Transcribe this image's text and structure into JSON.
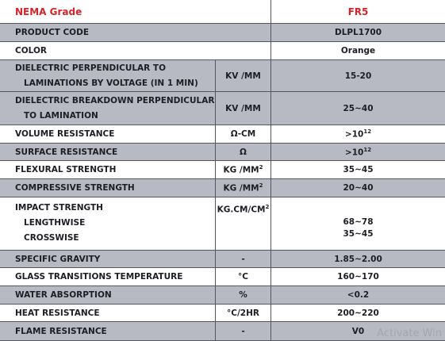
{
  "header": {
    "grade_label": "NEMA Grade",
    "grade": "FR5"
  },
  "rows": [
    {
      "property": "PRODUCT CODE",
      "value": "DLPL1700"
    },
    {
      "property": "COLOR",
      "value": "Orange"
    },
    {
      "property": [
        "DIELECTRIC PERPENDICULAR TO",
        "LAMINATIONS BY VOLTAGE (IN 1 MIN)"
      ],
      "unit": "KV /MM",
      "value": "15-20"
    },
    {
      "property": [
        "DIELECTRIC BREAKDOWN PERPENDICULAR",
        "TO LAMINATION"
      ],
      "unit": "KV /MM",
      "value": "25~40"
    },
    {
      "property": "VOLUME RESISTANCE",
      "unit": "Ω-CM",
      "value": {
        "text": ">10",
        "sup": "12"
      }
    },
    {
      "property": "SURFACE RESISTANCE",
      "unit": "Ω",
      "value": {
        "text": ">10",
        "sup": "12"
      }
    },
    {
      "property": "FLEXURAL STRENGTH",
      "unit": {
        "text": "KG /MM",
        "sup": "2"
      },
      "value": "35~45"
    },
    {
      "property": "COMPRESSIVE STRENGTH",
      "unit": {
        "text": "KG /MM",
        "sup": "2"
      },
      "value": "20~40"
    },
    {
      "property": [
        "IMPACT STRENGTH",
        "LENGTHWISE",
        "CROSSWISE"
      ],
      "unit": {
        "text": "KG.CM/CM",
        "sup": "2"
      },
      "value": [
        "68~78",
        "35~45"
      ]
    },
    {
      "property": "SPECIFIC GRAVITY",
      "unit": "-",
      "value": "1.85~2.00"
    },
    {
      "property": "GLASS TRANSITIONS TEMPERATURE",
      "unit": "°C",
      "value": "160~170"
    },
    {
      "property": "WATER ABSORPTION",
      "unit": "%",
      "value": "<0.2"
    },
    {
      "property": "HEAT RESISTANCE",
      "unit": "°C/2HR",
      "value": "200~220"
    },
    {
      "property": "FLAME RESISTANCE",
      "unit": "-",
      "value": "V0"
    }
  ],
  "watermark": "Activate Win"
}
